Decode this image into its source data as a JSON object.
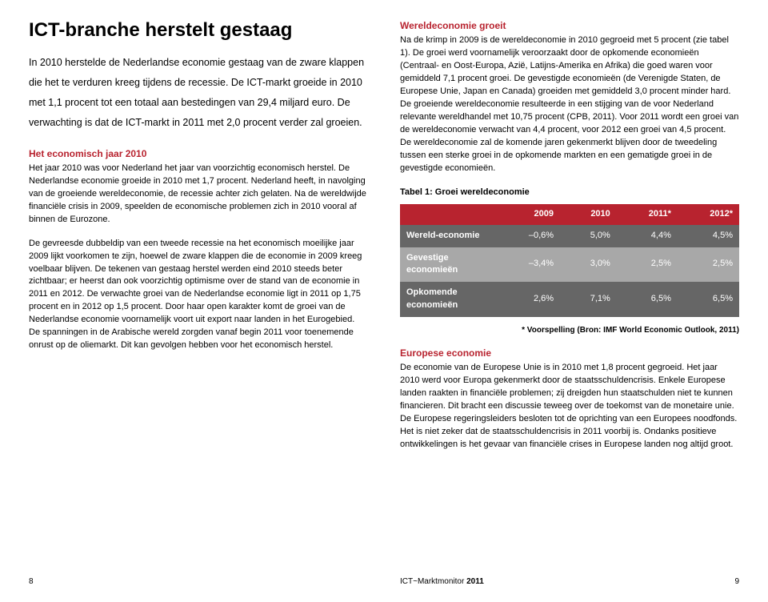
{
  "left": {
    "title": "ICT-branche herstelt gestaag",
    "intro": "In 2010 herstelde de Nederlandse economie gestaag van de zware klappen die het te verduren kreeg tijdens de recessie. De ICT-markt groeide in 2010 met 1,1 procent tot een totaal aan bestedingen van 29,4 miljard euro. De verwachting is dat de ICT-markt in 2011 met 2,0 procent verder zal groeien.",
    "section1_heading": "Het economisch jaar 2010",
    "section1_body": "Het jaar 2010 was voor Nederland het jaar van voorzichtig economisch herstel. De Nederlandse economie groeide in 2010 met 1,7 procent. Nederland heeft, in navolging van de groeiende wereldeconomie, de recessie achter zich gelaten. Na de wereldwijde financiële crisis in 2009, speelden de economische problemen zich in 2010 vooral af binnen de Eurozone.",
    "section1_body2": "De gevreesde dubbeldip van een tweede recessie na het economisch moeilijke jaar 2009 lijkt voorkomen te zijn, hoewel de zware klappen die de economie in 2009 kreeg voelbaar blijven. De tekenen van gestaag herstel werden eind 2010 steeds beter zichtbaar; er heerst dan ook voorzichtig optimisme over de stand van de economie in 2011 en 2012. De verwachte groei van de Nederlandse economie ligt in 2011 op 1,75 procent en in 2012 op 1,5 procent. Door haar open karakter komt de groei van de Nederlandse economie voornamelijk voort uit export naar landen in het Eurogebied. De spanningen in de Arabische wereld zorgden vanaf begin 2011 voor toenemende onrust op de oliemarkt. Dit kan gevolgen hebben voor het economisch herstel.",
    "footer_page": "8"
  },
  "right": {
    "section2_heading": "Wereldeconomie groeit",
    "section2_body": "Na de krimp in 2009 is de wereldeconomie in 2010 gegroeid met 5 procent (zie tabel 1). De groei werd voornamelijk veroorzaakt door de opkomende economieën (Centraal- en Oost-Europa, Azië, Latijns-Amerika en Afrika) die goed waren voor gemiddeld 7,1 procent groei. De gevestigde economieën (de Verenigde Staten, de Europese Unie, Japan en Canada) groeiden met gemiddeld 3,0 procent minder hard. De groeiende wereldeconomie resulteerde in een stijging van de voor Nederland relevante wereldhandel met 10,75 procent (CPB, 2011). Voor 2011 wordt een groei van de wereldeconomie verwacht van 4,4 procent, voor 2012 een groei van 4,5 procent. De wereldeconomie zal de komende jaren gekenmerkt blijven door de tweedeling tussen een sterke groei in de opkomende markten en een gematigde groei in de gevestigde economieën.",
    "table_caption": "Tabel 1: Groei wereldeconomie",
    "table": {
      "columns": [
        "",
        "2009",
        "2010",
        "2011*",
        "2012*"
      ],
      "rows": [
        [
          "Wereld-economie",
          "–0,6%",
          "5,0%",
          "4,4%",
          "4,5%"
        ],
        [
          "Gevestige economieën",
          "–3,4%",
          "3,0%",
          "2,5%",
          "2,5%"
        ],
        [
          "Opkomende economieën",
          "2,6%",
          "7,1%",
          "6,5%",
          "6,5%"
        ]
      ],
      "header_bg": "#b8232f",
      "row_bg_dark": "#666666",
      "row_bg_light": "#a8a8a8",
      "text_color": "#ffffff"
    },
    "footnote": "* Voorspelling (Bron: IMF World Economic Outlook, 2011)",
    "section3_heading": "Europese economie",
    "section3_body": "De economie van de Europese Unie is in 2010 met 1,8 procent gegroeid. Het jaar 2010 werd voor Europa gekenmerkt door de staatsschuldencrisis. Enkele Europese landen raakten in financiële problemen; zij dreigden hun staatschulden niet te kunnen financieren. Dit bracht een discussie teweeg over de toekomst van de monetaire unie. De Europese regeringsleiders besloten tot de oprichting van een Europees noodfonds. Het is niet zeker dat de staatsschuldencrisis in 2011 voorbij is. Ondanks positieve ontwikkelingen is het gevaar van financiële crises in Europese landen nog altijd groot.",
    "footer_title": "ICT~Marktmonitor ",
    "footer_year": "2011",
    "footer_page": "9"
  }
}
